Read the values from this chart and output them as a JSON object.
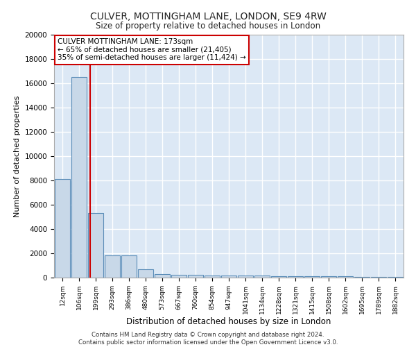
{
  "title1": "CULVER, MOTTINGHAM LANE, LONDON, SE9 4RW",
  "title2": "Size of property relative to detached houses in London",
  "xlabel": "Distribution of detached houses by size in London",
  "ylabel": "Number of detached properties",
  "bin_labels": [
    "12sqm",
    "106sqm",
    "199sqm",
    "293sqm",
    "386sqm",
    "480sqm",
    "573sqm",
    "667sqm",
    "760sqm",
    "854sqm",
    "947sqm",
    "1041sqm",
    "1134sqm",
    "1228sqm",
    "1321sqm",
    "1415sqm",
    "1508sqm",
    "1602sqm",
    "1695sqm",
    "1789sqm",
    "1882sqm"
  ],
  "bar_heights": [
    8100,
    16500,
    5300,
    1850,
    1850,
    700,
    300,
    250,
    220,
    200,
    180,
    170,
    155,
    140,
    125,
    110,
    100,
    90,
    80,
    70,
    60
  ],
  "bar_color": "#c8d8e8",
  "bar_edge_color": "#5b8db8",
  "bg_color": "#dce8f5",
  "grid_color": "#ffffff",
  "annotation_box_text": "CULVER MOTTINGHAM LANE: 173sqm\n← 65% of detached houses are smaller (21,405)\n35% of semi-detached houses are larger (11,424) →",
  "annotation_box_color": "#ffffff",
  "annotation_box_edge_color": "#cc0000",
  "vline_x": 1.65,
  "vline_color": "#cc0000",
  "footer_text": "Contains HM Land Registry data © Crown copyright and database right 2024.\nContains public sector information licensed under the Open Government Licence v3.0.",
  "ylim": [
    0,
    20000
  ],
  "yticks": [
    0,
    2000,
    4000,
    6000,
    8000,
    10000,
    12000,
    14000,
    16000,
    18000,
    20000
  ]
}
